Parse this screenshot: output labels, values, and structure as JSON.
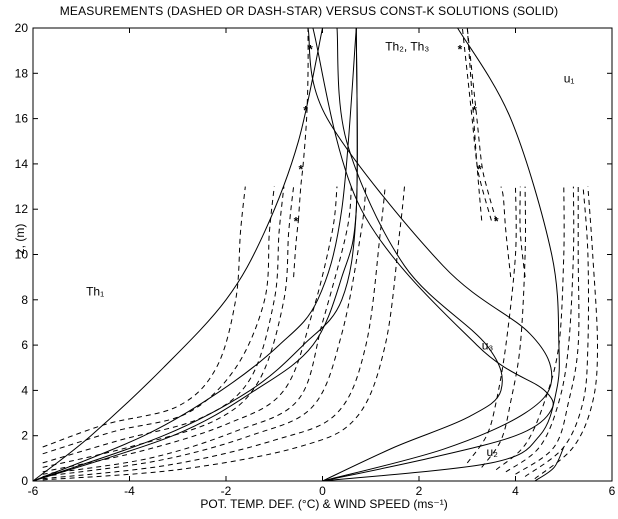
{
  "chart_data": {
    "type": "line",
    "title": "MEASUREMENTS (DASHED OR DASH-STAR) VERSUS CONST-K SOLUTIONS (SOLID)",
    "xlabel": "POT. TEMP. DEF. (°C) & WIND SPEED (ms⁻¹)",
    "ylabel": "z, (m)",
    "xlim": [
      -6,
      6
    ],
    "ylim": [
      0,
      20
    ],
    "xticks": [
      -6,
      -4,
      -2,
      0,
      2,
      4,
      6
    ],
    "yticks": [
      0,
      2,
      4,
      6,
      8,
      10,
      12,
      14,
      16,
      18,
      20
    ],
    "grid": false,
    "annotations": [
      {
        "text": "Th₁",
        "x": -4.9,
        "y": 8.2
      },
      {
        "text": "Th₂, Th₃",
        "x": 1.3,
        "y": 19.0
      },
      {
        "text": "u₁",
        "x": 5.0,
        "y": 17.6
      },
      {
        "text": "u₃",
        "x": 3.3,
        "y": 5.8
      },
      {
        "text": "u₂",
        "x": 3.4,
        "y": 1.1
      }
    ],
    "series": [
      {
        "style": "solid",
        "x": [
          -6,
          -4.8,
          -3.3,
          -2.0,
          -1.2,
          -0.5,
          0.0
        ],
        "y": [
          0,
          2,
          5,
          8,
          11,
          15,
          20
        ]
      },
      {
        "style": "solid",
        "x": [
          -6,
          -3.7,
          -2.1,
          -0.9,
          -0.1,
          0.4,
          0.7
        ],
        "y": [
          0,
          2,
          4,
          6,
          8,
          12,
          20
        ]
      },
      {
        "style": "solid",
        "x": [
          -6,
          -3.3,
          -1.5,
          -0.4,
          0.4,
          0.7,
          0.7
        ],
        "y": [
          0,
          2,
          4,
          6,
          8,
          12,
          20
        ]
      },
      {
        "style": "solid",
        "x": [
          -6,
          -3.1,
          -1.4,
          -0.2,
          0.4,
          0.7,
          0.7
        ],
        "y": [
          0,
          2,
          4,
          6,
          9,
          12,
          20
        ]
      },
      {
        "style": "solid",
        "x": [
          0,
          2.5,
          4.2,
          4.75,
          4.3,
          2.5,
          0.1,
          -0.3
        ],
        "y": [
          0,
          1.4,
          3.0,
          4.5,
          6.5,
          9.5,
          16,
          20
        ]
      },
      {
        "style": "solid",
        "x": [
          0,
          1.5,
          3.0,
          3.7,
          3.4,
          1.7,
          0.5,
          0.3
        ],
        "y": [
          0,
          1.5,
          2.8,
          4.0,
          6.0,
          9.5,
          15,
          20
        ]
      },
      {
        "style": "solid",
        "x": [
          0,
          2.2,
          4.0,
          4.7,
          4.6,
          3.2,
          0.8,
          -0.2
        ],
        "y": [
          0,
          1.0,
          2.0,
          3.0,
          4.0,
          6.0,
          12,
          20
        ]
      },
      {
        "style": "solid",
        "x": [
          0,
          3.5,
          4.5,
          4.85,
          4.9,
          4.75,
          3.9,
          2.8
        ],
        "y": [
          0,
          0.8,
          2.0,
          4.0,
          6.0,
          10.0,
          16,
          20
        ]
      },
      {
        "style": "solid",
        "x": [
          4.4,
          4.8,
          5.0
        ],
        "y": [
          0,
          0.6,
          1.5
        ]
      },
      {
        "style": "dashed",
        "x": [
          -5.8,
          -4.5,
          -3.0,
          -2.2,
          -1.8,
          -1.7,
          -1.6
        ],
        "y": [
          1.5,
          2.5,
          3.3,
          5.0,
          8.0,
          11.0,
          13.0
        ]
      },
      {
        "style": "dashed",
        "x": [
          -5.8,
          -4.3,
          -2.8,
          -1.8,
          -1.2,
          -1.1,
          -1.0
        ],
        "y": [
          1.2,
          2.2,
          3.0,
          5.0,
          8.0,
          11.0,
          13.0
        ]
      },
      {
        "style": "dashed",
        "x": [
          -5.8,
          -4.2,
          -2.5,
          -1.5,
          -1.0,
          -0.9,
          -0.8
        ],
        "y": [
          0.8,
          1.8,
          2.8,
          4.5,
          8.0,
          11.0,
          13.0
        ]
      },
      {
        "style": "dashed",
        "x": [
          -5.8,
          -4.0,
          -2.2,
          -1.3,
          -0.8,
          -0.7,
          -0.6
        ],
        "y": [
          0.6,
          1.5,
          2.7,
          4.5,
          8.0,
          11.0,
          13.0
        ]
      },
      {
        "style": "dashed",
        "x": [
          -5.8,
          -3.8,
          -2.0,
          -0.8,
          -0.2,
          0.2,
          0.3
        ],
        "y": [
          0.4,
          1.3,
          2.5,
          4.0,
          7.5,
          11.0,
          13.0
        ]
      },
      {
        "style": "dashed",
        "x": [
          -5.8,
          -3.6,
          -1.8,
          -0.5,
          0.0,
          0.5,
          0.6
        ],
        "y": [
          0.3,
          1.0,
          2.2,
          3.6,
          7.0,
          11.0,
          13.0
        ]
      },
      {
        "style": "dashed",
        "x": [
          -5.8,
          -3.4,
          -1.5,
          -0.2,
          0.4,
          0.8,
          0.9
        ],
        "y": [
          0.2,
          0.9,
          2.0,
          3.3,
          6.5,
          11.0,
          13.0
        ]
      },
      {
        "style": "dashed",
        "x": [
          -5.8,
          -3.2,
          -1.0,
          0.3,
          0.9,
          1.2,
          1.3
        ],
        "y": [
          0.1,
          0.7,
          1.8,
          3.0,
          6.0,
          11.0,
          13.0
        ]
      },
      {
        "style": "dashed",
        "x": [
          -5.8,
          -3.0,
          -0.5,
          0.7,
          1.3,
          1.6,
          1.7
        ],
        "y": [
          0.05,
          0.5,
          1.5,
          2.8,
          6.0,
          11.0,
          13.0
        ]
      },
      {
        "style": "dashed",
        "x": [
          -0.5,
          -0.45,
          -0.4,
          -0.33,
          -0.3,
          -0.3
        ],
        "y": [
          11.5,
          13.0,
          14.0,
          16.0,
          18.0,
          20.0
        ]
      },
      {
        "style": "dashed",
        "x": [
          3.0,
          3.4,
          3.6,
          3.8,
          4.0,
          4.0
        ],
        "y": [
          0.8,
          2.0,
          3.5,
          6.0,
          10.0,
          13.0
        ]
      },
      {
        "style": "dashed",
        "x": [
          3.3,
          3.7,
          3.9,
          4.1,
          4.2,
          4.2
        ],
        "y": [
          0.6,
          1.8,
          3.5,
          6.0,
          10.0,
          13.0
        ]
      },
      {
        "style": "dashed",
        "x": [
          3.6,
          4.2,
          4.6,
          4.9,
          5.0,
          5.0
        ],
        "y": [
          0.5,
          1.6,
          3.5,
          6.0,
          10.0,
          13.0
        ]
      },
      {
        "style": "dashed",
        "x": [
          3.8,
          4.5,
          4.9,
          5.1,
          5.2,
          5.2
        ],
        "y": [
          0.4,
          1.5,
          3.5,
          6.0,
          10.0,
          13.0
        ]
      },
      {
        "style": "dashed",
        "x": [
          4.0,
          4.8,
          5.1,
          5.3,
          5.3,
          5.3
        ],
        "y": [
          0.3,
          1.5,
          3.5,
          6.0,
          10.0,
          13.0
        ]
      },
      {
        "style": "dashed",
        "x": [
          4.2,
          5.0,
          5.4,
          5.5,
          5.5,
          5.4
        ],
        "y": [
          0.2,
          1.5,
          3.5,
          6.0,
          10.0,
          13.0
        ]
      },
      {
        "style": "dashed",
        "x": [
          4.4,
          5.2,
          5.6,
          5.7,
          5.6,
          5.5
        ],
        "y": [
          0.1,
          1.5,
          3.5,
          6.0,
          10.0,
          13.0
        ]
      },
      {
        "style": "dashed",
        "x": [
          3.5,
          3.3,
          3.2,
          3.1,
          3.0,
          2.9
        ],
        "y": [
          11.5,
          13.0,
          14.0,
          16.0,
          18.0,
          20.0
        ]
      },
      {
        "style": "dashed",
        "x": [
          3.6,
          3.4,
          3.3,
          3.2,
          3.1,
          3.0
        ],
        "y": [
          11.5,
          13.0,
          14.0,
          16.0,
          18.0,
          20.0
        ]
      },
      {
        "style": "dashed",
        "x": [
          3.3,
          3.2,
          3.1,
          3.0
        ],
        "y": [
          11.5,
          14.0,
          17.0,
          20.0
        ]
      },
      {
        "style": "dashed",
        "x": [
          3.9,
          3.8,
          3.75,
          3.7
        ],
        "y": [
          9.0,
          11.0,
          12.5,
          13.0
        ]
      },
      {
        "style": "dashed",
        "x": [
          4.2,
          4.1,
          4.1
        ],
        "y": [
          9.0,
          11.0,
          13.0
        ]
      },
      {
        "style": "dashed",
        "x": [
          -0.6,
          -0.55,
          -0.5
        ],
        "y": [
          9.0,
          10.5,
          11.5
        ]
      }
    ],
    "markers": [
      {
        "x": -0.25,
        "y": 19.1
      },
      {
        "x": -0.35,
        "y": 16.4
      },
      {
        "x": -0.45,
        "y": 13.8
      },
      {
        "x": -0.55,
        "y": 11.5
      },
      {
        "x": 2.85,
        "y": 19.1
      },
      {
        "x": 3.15,
        "y": 16.4
      },
      {
        "x": 3.25,
        "y": 13.8
      },
      {
        "x": 3.6,
        "y": 11.5
      }
    ]
  }
}
